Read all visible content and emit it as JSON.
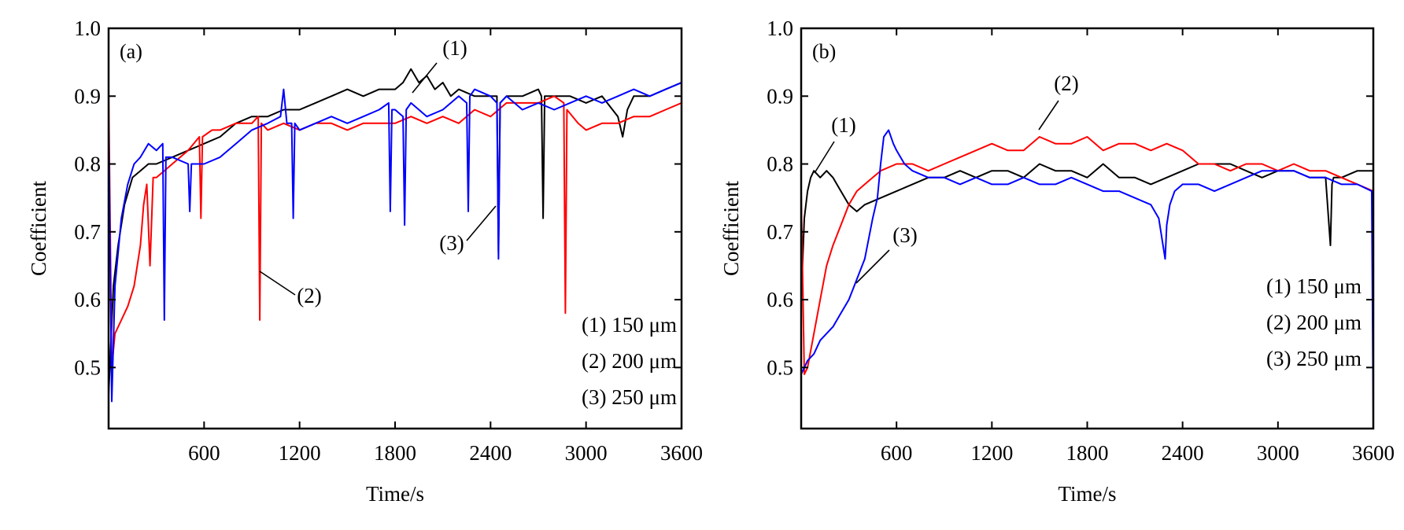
{
  "chart_data": [
    {
      "type": "line",
      "panel_label": "(a)",
      "xlabel": "Time/s",
      "ylabel": "Coefficient",
      "xlim": [
        0,
        3600
      ],
      "ylim": [
        0.41,
        1.0
      ],
      "xticks": [
        600,
        1200,
        1800,
        2400,
        3000,
        3600
      ],
      "yticks": [
        0.5,
        0.6,
        0.7,
        0.8,
        0.9,
        1.0
      ],
      "legend": [
        "(1) 150 μm",
        "(2) 200 μm",
        "(3) 250 μm"
      ],
      "legend_position": "bottom-right",
      "callouts": [
        "(1)",
        "(2)",
        "(3)"
      ],
      "series": [
        {
          "name": "(1) 150 μm",
          "color": "#000000",
          "x": [
            0,
            30,
            60,
            100,
            150,
            200,
            250,
            300,
            400,
            500,
            600,
            700,
            800,
            900,
            1000,
            1100,
            1200,
            1300,
            1400,
            1500,
            1600,
            1700,
            1800,
            1850,
            1900,
            1950,
            2000,
            2050,
            2100,
            2150,
            2200,
            2300,
            2400,
            2440,
            2450,
            2460,
            2500,
            2600,
            2700,
            2720,
            2730,
            2740,
            2800,
            2900,
            3000,
            3100,
            3200,
            3230,
            3260,
            3300,
            3400,
            3500,
            3600
          ],
          "y": [
            0.46,
            0.62,
            0.68,
            0.74,
            0.78,
            0.79,
            0.8,
            0.8,
            0.81,
            0.82,
            0.83,
            0.84,
            0.86,
            0.87,
            0.87,
            0.88,
            0.88,
            0.89,
            0.9,
            0.91,
            0.9,
            0.91,
            0.91,
            0.92,
            0.94,
            0.92,
            0.93,
            0.91,
            0.92,
            0.9,
            0.91,
            0.9,
            0.9,
            0.9,
            0.67,
            0.89,
            0.9,
            0.9,
            0.91,
            0.9,
            0.72,
            0.9,
            0.9,
            0.9,
            0.89,
            0.9,
            0.87,
            0.84,
            0.88,
            0.9,
            0.9,
            0.91,
            0.92
          ]
        },
        {
          "name": "(2) 200 μm",
          "color": "#ff0000",
          "x": [
            0,
            20,
            40,
            80,
            120,
            160,
            200,
            220,
            240,
            260,
            280,
            300,
            350,
            400,
            500,
            570,
            580,
            590,
            650,
            700,
            800,
            900,
            940,
            950,
            960,
            1000,
            1100,
            1200,
            1300,
            1400,
            1500,
            1600,
            1700,
            1800,
            1900,
            2000,
            2100,
            2200,
            2300,
            2400,
            2500,
            2600,
            2700,
            2800,
            2860,
            2870,
            2880,
            2950,
            3000,
            3100,
            3200,
            3300,
            3400,
            3500,
            3600
          ],
          "y": [
            0.91,
            0.5,
            0.55,
            0.57,
            0.59,
            0.62,
            0.68,
            0.74,
            0.77,
            0.65,
            0.78,
            0.78,
            0.79,
            0.8,
            0.82,
            0.84,
            0.72,
            0.84,
            0.85,
            0.85,
            0.86,
            0.86,
            0.87,
            0.57,
            0.86,
            0.85,
            0.86,
            0.85,
            0.86,
            0.86,
            0.85,
            0.86,
            0.86,
            0.86,
            0.87,
            0.86,
            0.87,
            0.86,
            0.88,
            0.87,
            0.89,
            0.89,
            0.89,
            0.9,
            0.89,
            0.58,
            0.88,
            0.86,
            0.85,
            0.86,
            0.86,
            0.87,
            0.87,
            0.88,
            0.89
          ]
        },
        {
          "name": "(3) 250 μm",
          "color": "#0000ff",
          "x": [
            0,
            20,
            40,
            80,
            120,
            160,
            200,
            250,
            300,
            340,
            350,
            360,
            400,
            500,
            510,
            520,
            600,
            700,
            800,
            900,
            1000,
            1080,
            1100,
            1120,
            1150,
            1160,
            1170,
            1200,
            1300,
            1400,
            1500,
            1600,
            1700,
            1760,
            1770,
            1780,
            1800,
            1850,
            1860,
            1870,
            1900,
            2000,
            2100,
            2200,
            2250,
            2260,
            2270,
            2300,
            2400,
            2440,
            2450,
            2460,
            2500,
            2600,
            2700,
            2800,
            2900,
            3000,
            3100,
            3200,
            3300,
            3400,
            3500,
            3600
          ],
          "y": [
            0.87,
            0.45,
            0.62,
            0.72,
            0.77,
            0.8,
            0.81,
            0.83,
            0.82,
            0.83,
            0.57,
            0.81,
            0.81,
            0.8,
            0.73,
            0.8,
            0.8,
            0.81,
            0.83,
            0.85,
            0.86,
            0.87,
            0.91,
            0.86,
            0.86,
            0.72,
            0.86,
            0.85,
            0.86,
            0.87,
            0.86,
            0.87,
            0.88,
            0.89,
            0.73,
            0.88,
            0.88,
            0.87,
            0.71,
            0.88,
            0.89,
            0.87,
            0.88,
            0.9,
            0.89,
            0.73,
            0.9,
            0.91,
            0.9,
            0.89,
            0.66,
            0.89,
            0.9,
            0.88,
            0.89,
            0.88,
            0.89,
            0.9,
            0.89,
            0.9,
            0.91,
            0.9,
            0.91,
            0.92
          ]
        }
      ]
    },
    {
      "type": "line",
      "panel_label": "(b)",
      "xlabel": "Time/s",
      "ylabel": "Coefficient",
      "xlim": [
        0,
        3600
      ],
      "ylim": [
        0.41,
        1.0
      ],
      "xticks": [
        600,
        1200,
        1800,
        2400,
        3000,
        3600
      ],
      "yticks": [
        0.5,
        0.6,
        0.7,
        0.8,
        0.9,
        1.0
      ],
      "legend": [
        "(1) 150 μm",
        "(2) 200 μm",
        "(3) 250 μm"
      ],
      "legend_position": "right",
      "callouts": [
        "(1)",
        "(2)",
        "(3)"
      ],
      "series": [
        {
          "name": "(1) 150 μm",
          "color": "#000000",
          "x": [
            0,
            20,
            40,
            60,
            80,
            120,
            160,
            200,
            250,
            300,
            350,
            400,
            500,
            600,
            700,
            800,
            900,
            1000,
            1100,
            1200,
            1300,
            1400,
            1500,
            1600,
            1700,
            1800,
            1900,
            2000,
            2100,
            2200,
            2300,
            2400,
            2500,
            2600,
            2700,
            2800,
            2900,
            3000,
            3100,
            3200,
            3300,
            3330,
            3340,
            3350,
            3400,
            3500,
            3600
          ],
          "y": [
            0.6,
            0.72,
            0.76,
            0.78,
            0.79,
            0.78,
            0.79,
            0.78,
            0.76,
            0.74,
            0.73,
            0.74,
            0.75,
            0.76,
            0.77,
            0.78,
            0.78,
            0.79,
            0.78,
            0.79,
            0.79,
            0.78,
            0.8,
            0.79,
            0.79,
            0.78,
            0.8,
            0.78,
            0.78,
            0.77,
            0.78,
            0.79,
            0.8,
            0.8,
            0.8,
            0.79,
            0.78,
            0.79,
            0.79,
            0.78,
            0.78,
            0.68,
            0.77,
            0.78,
            0.78,
            0.79,
            0.79
          ]
        },
        {
          "name": "(2) 200 μm",
          "color": "#ff0000",
          "x": [
            0,
            20,
            40,
            80,
            120,
            160,
            200,
            250,
            300,
            350,
            400,
            450,
            500,
            600,
            700,
            800,
            900,
            1000,
            1100,
            1200,
            1300,
            1400,
            1500,
            1600,
            1700,
            1800,
            1900,
            2000,
            2100,
            2200,
            2300,
            2400,
            2500,
            2600,
            2700,
            2800,
            2900,
            3000,
            3100,
            3200,
            3300,
            3400,
            3500,
            3600
          ],
          "y": [
            0.76,
            0.49,
            0.5,
            0.55,
            0.6,
            0.65,
            0.68,
            0.71,
            0.74,
            0.76,
            0.77,
            0.78,
            0.79,
            0.8,
            0.8,
            0.79,
            0.8,
            0.81,
            0.82,
            0.83,
            0.82,
            0.82,
            0.84,
            0.83,
            0.83,
            0.84,
            0.82,
            0.83,
            0.83,
            0.82,
            0.83,
            0.82,
            0.8,
            0.8,
            0.79,
            0.8,
            0.8,
            0.79,
            0.8,
            0.79,
            0.79,
            0.78,
            0.77,
            0.76
          ]
        },
        {
          "name": "(3) 250 μm",
          "color": "#0000ff",
          "x": [
            0,
            20,
            40,
            80,
            120,
            160,
            200,
            250,
            300,
            350,
            400,
            450,
            480,
            500,
            520,
            550,
            580,
            600,
            650,
            700,
            800,
            900,
            1000,
            1100,
            1200,
            1300,
            1400,
            1500,
            1600,
            1700,
            1800,
            1900,
            2000,
            2100,
            2200,
            2250,
            2290,
            2300,
            2320,
            2350,
            2400,
            2500,
            2600,
            2700,
            2800,
            2900,
            3000,
            3100,
            3200,
            3300,
            3400,
            3500,
            3590,
            3600
          ],
          "y": [
            0.49,
            0.5,
            0.51,
            0.52,
            0.54,
            0.55,
            0.56,
            0.58,
            0.6,
            0.63,
            0.66,
            0.72,
            0.75,
            0.8,
            0.84,
            0.85,
            0.83,
            0.82,
            0.8,
            0.79,
            0.78,
            0.78,
            0.77,
            0.78,
            0.77,
            0.77,
            0.78,
            0.77,
            0.77,
            0.78,
            0.77,
            0.76,
            0.76,
            0.75,
            0.74,
            0.72,
            0.66,
            0.71,
            0.74,
            0.76,
            0.77,
            0.77,
            0.76,
            0.77,
            0.78,
            0.79,
            0.79,
            0.79,
            0.78,
            0.78,
            0.77,
            0.77,
            0.76,
            0.41
          ]
        }
      ]
    }
  ]
}
